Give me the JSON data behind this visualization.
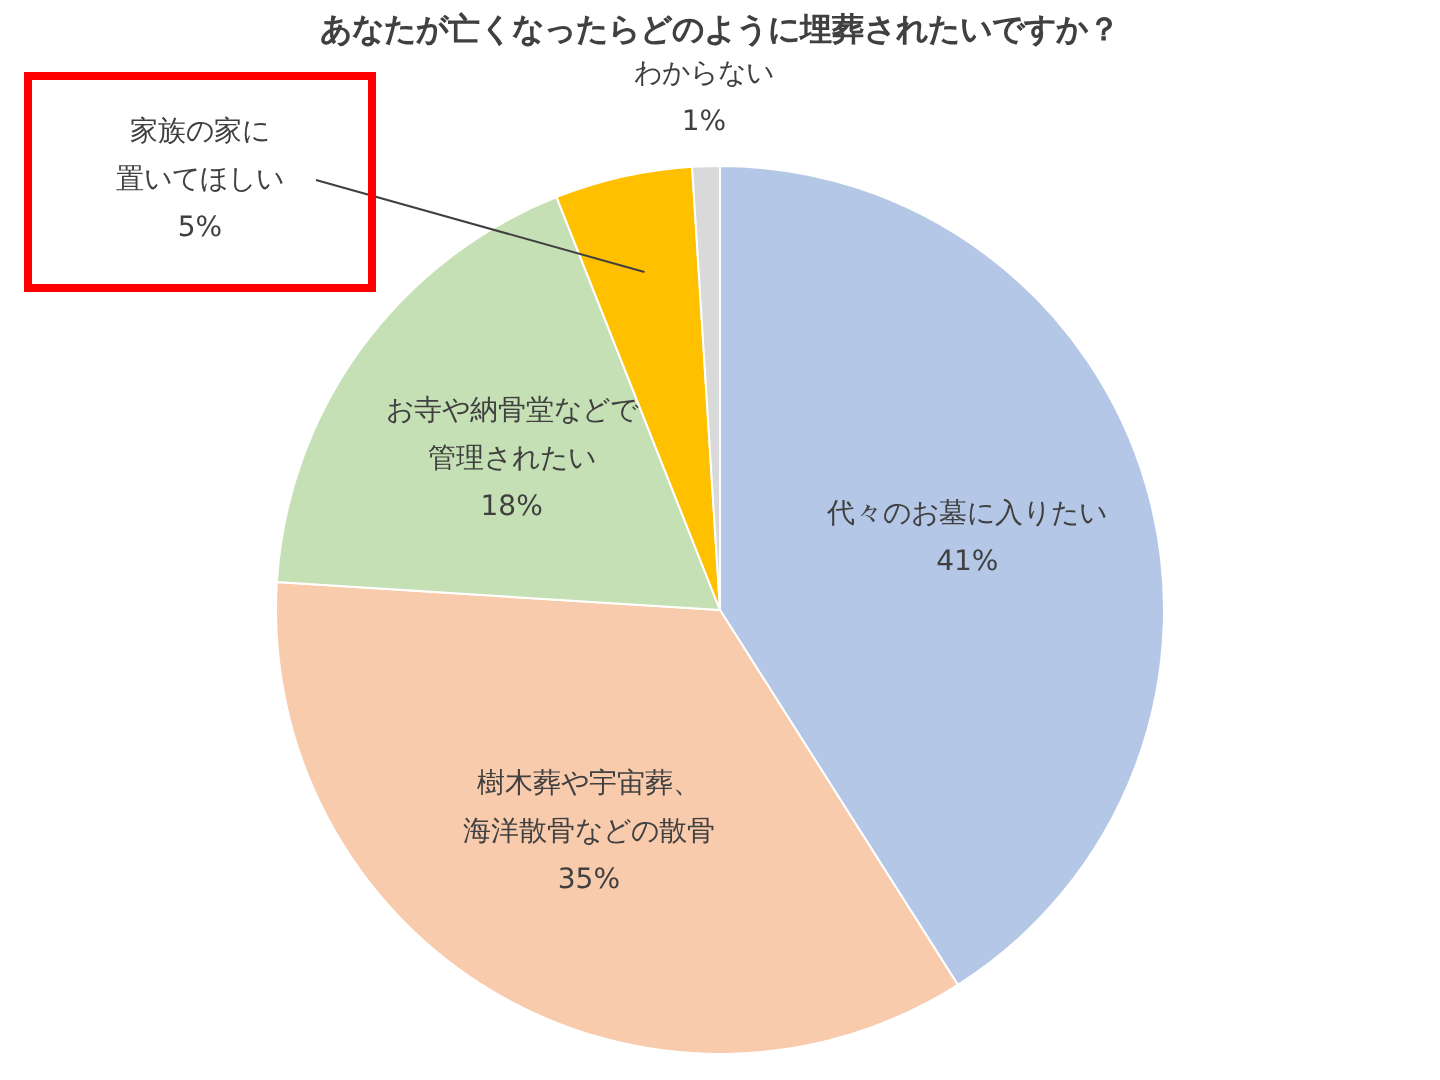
{
  "chart_data": {
    "type": "pie",
    "title": "あなたが亡くなったらどのように埋葬されたいですか？",
    "categories": [
      "代々のお墓に入りたい",
      "樹木葬や宇宙葬、海洋散骨などの散骨",
      "お寺や納骨堂などで管理されたい",
      "家族の家に置いてほしい",
      "わからない"
    ],
    "values": [
      41,
      35,
      18,
      5,
      1
    ],
    "value_labels": [
      "41%",
      "35%",
      "18%",
      "5%",
      "1%"
    ],
    "colors": [
      "#b4c7e7",
      "#f8cbad",
      "#c5e0b4",
      "#ffc000",
      "#d9d9d9"
    ]
  }
}
